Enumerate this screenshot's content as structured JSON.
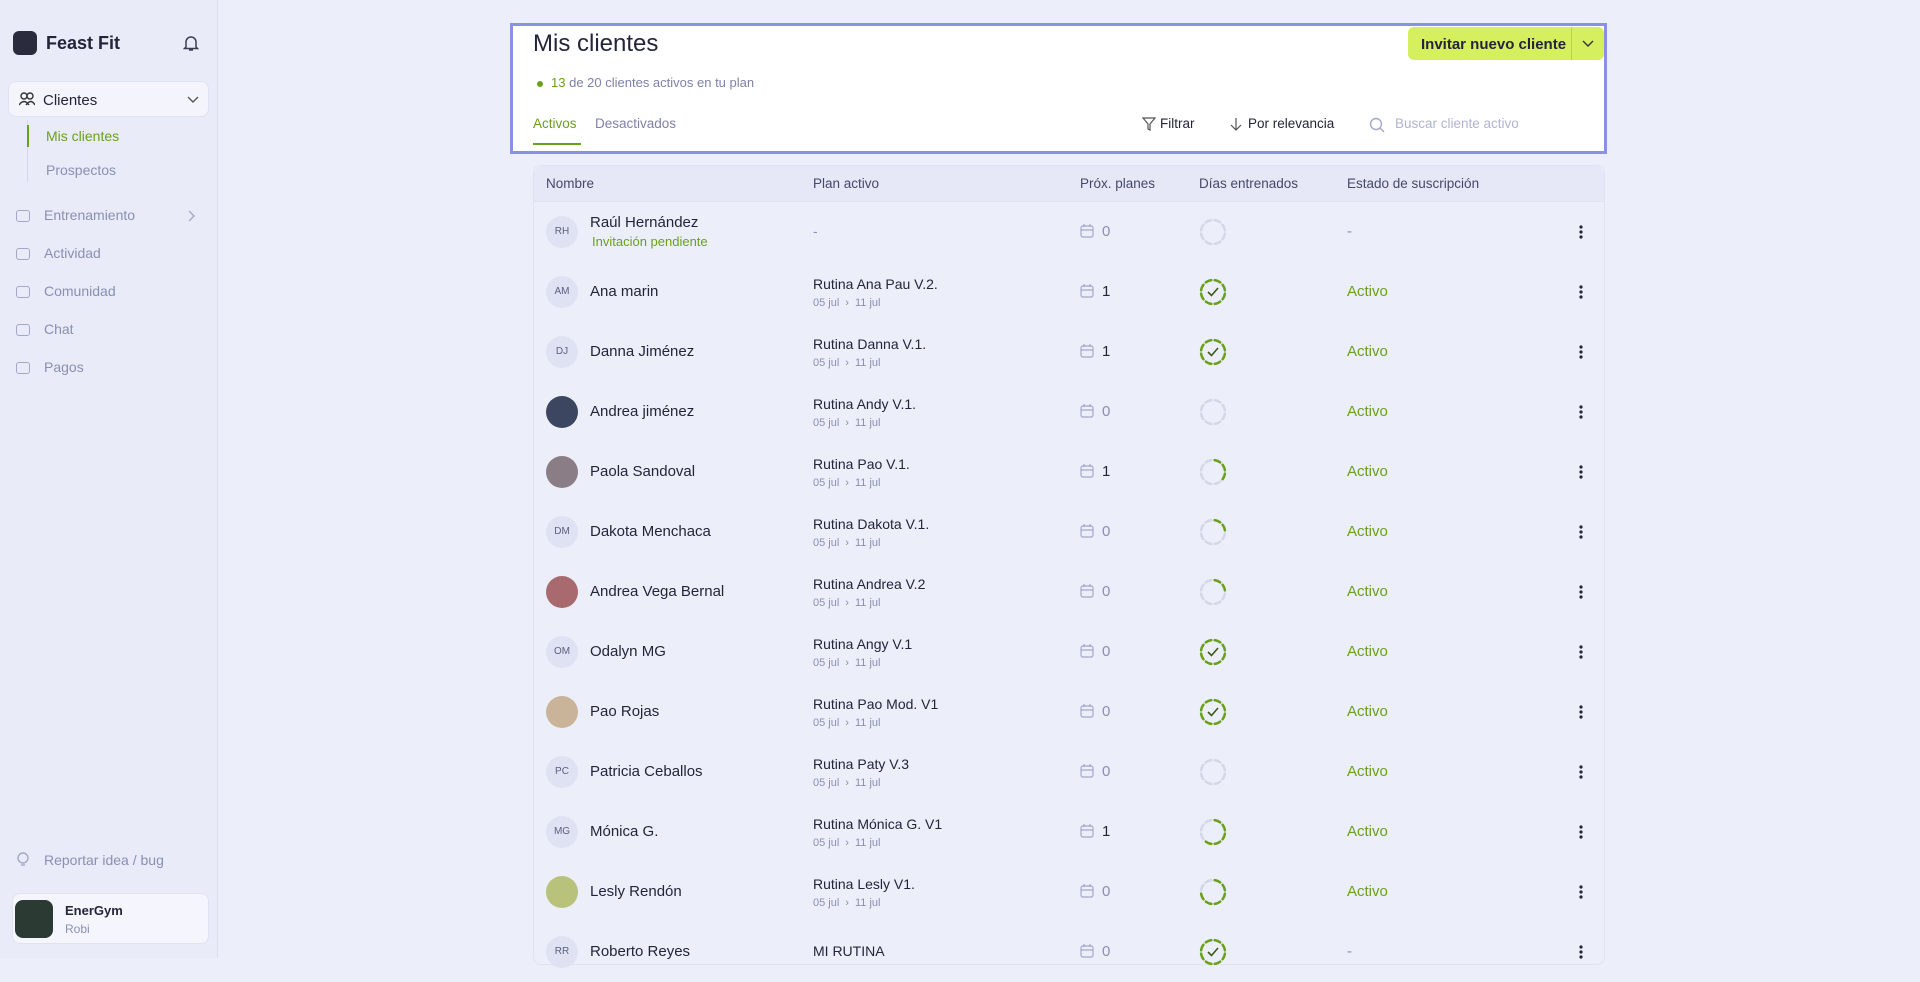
{
  "sidebar": {
    "brand": "Feast Fit",
    "section": "Clientes",
    "subnav": [
      "Mis clientes",
      "Prospectos"
    ],
    "nav": [
      "Entrenamiento",
      "Actividad",
      "Comunidad",
      "Chat",
      "Pagos"
    ],
    "report": "Reportar idea / bug",
    "account": {
      "name": "EnerGym",
      "user": "Robi"
    }
  },
  "header": {
    "title": "Mis clientes",
    "invite": "Invitar nuevo cliente",
    "active_count": "13",
    "active_text": "de 20 clientes activos en tu plan",
    "tabs": [
      "Activos",
      "Desactivados"
    ],
    "filter": "Filtrar",
    "sort": "Por relevancia",
    "search_placeholder": "Buscar cliente activo"
  },
  "table": {
    "columns": [
      "Nombre",
      "Plan activo",
      "Próx. planes",
      "Días entrenados",
      "Estado de suscripción"
    ],
    "rows": [
      {
        "initials": "RH",
        "name": "Raúl Hernández",
        "note": "Invitación pendiente",
        "plan": "-",
        "upcoming": 0,
        "progress": 0,
        "status": "-"
      },
      {
        "initials": "AM",
        "name": "Ana marin",
        "plan": "Rutina Ana Pau V.2.",
        "start": "05 jul",
        "end": "11 jul",
        "upcoming": 1,
        "progress": 1,
        "status": "Activo"
      },
      {
        "initials": "DJ",
        "name": "Danna Jiménez",
        "plan": "Rutina Danna V.1.",
        "start": "05 jul",
        "end": "11 jul",
        "upcoming": 1,
        "progress": 1,
        "status": "Activo"
      },
      {
        "name": "Andrea jiménez",
        "plan": "Rutina Andy V.1.",
        "start": "05 jul",
        "end": "11 jul",
        "upcoming": 0,
        "progress": 0,
        "status": "Activo"
      },
      {
        "name": "Paola Sandoval",
        "plan": "Rutina Pao V.1.",
        "start": "05 jul",
        "end": "11 jul",
        "upcoming": 1,
        "progress": 0.375,
        "status": "Activo"
      },
      {
        "initials": "DM",
        "name": "Dakota Menchaca",
        "plan": "Rutina Dakota V.1.",
        "start": "05 jul",
        "end": "11 jul",
        "upcoming": 0,
        "progress": 0.25,
        "status": "Activo"
      },
      {
        "name": "Andrea Vega Bernal",
        "plan": "Rutina Andrea V.2",
        "start": "05 jul",
        "end": "11 jul",
        "upcoming": 0,
        "progress": 0.25,
        "status": "Activo"
      },
      {
        "initials": "OM",
        "name": "Odalyn MG",
        "plan": "Rutina Angy V.1",
        "start": "05 jul",
        "end": "11 jul",
        "upcoming": 0,
        "progress": 1,
        "status": "Activo"
      },
      {
        "name": "Pao Rojas",
        "plan": "Rutina Pao Mod. V1",
        "start": "05 jul",
        "end": "11 jul",
        "upcoming": 0,
        "progress": 1,
        "status": "Activo"
      },
      {
        "initials": "PC",
        "name": "Patricia Ceballos",
        "plan": "Rutina Paty V.3",
        "start": "05 jul",
        "end": "11 jul",
        "upcoming": 0,
        "progress": 0,
        "status": "Activo"
      },
      {
        "initials": "MG",
        "name": "Mónica G.",
        "plan": "Rutina Mónica G. V1",
        "start": "05 jul",
        "end": "11 jul",
        "upcoming": 1,
        "progress": 0.625,
        "status": "Activo"
      },
      {
        "name": "Lesly Rendón",
        "plan": "Rutina Lesly V1.",
        "start": "05 jul",
        "end": "11 jul",
        "upcoming": 0,
        "progress": 0.75,
        "status": "Activo"
      },
      {
        "initials": "RR",
        "name": "Roberto Reyes",
        "plan": "MI RUTINA",
        "upcoming": 0,
        "progress": 1,
        "status": "-"
      }
    ]
  }
}
